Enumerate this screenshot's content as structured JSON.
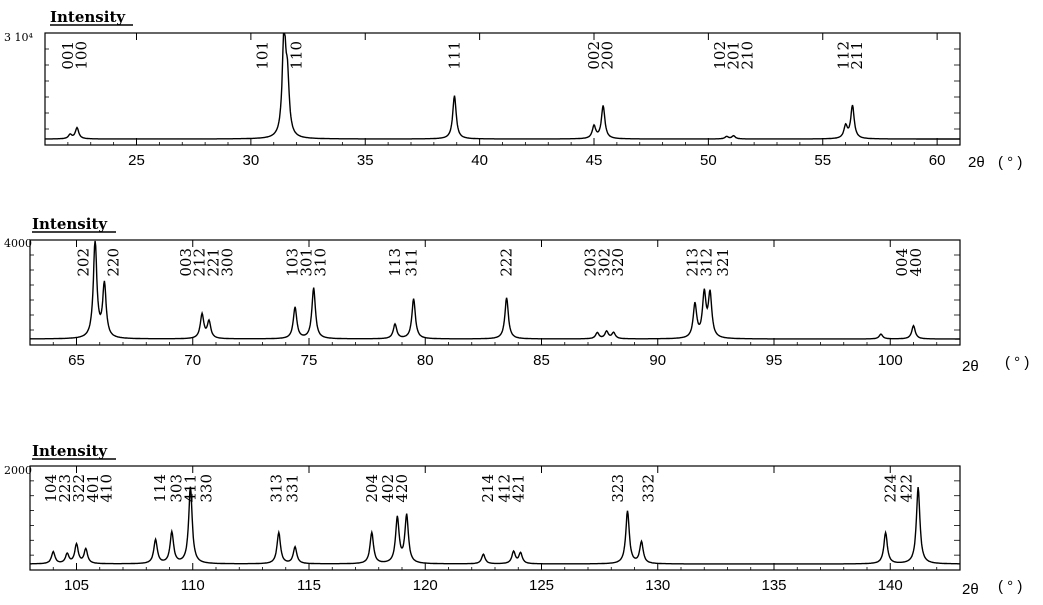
{
  "chart_data": [
    {
      "type": "line",
      "ylabel": "Intensity",
      "ylabel_underline": true,
      "y_max_label": "3 10⁴",
      "y_max": 30000,
      "xlabel": "2θ",
      "xunit": "( ° )",
      "xlim": [
        21,
        61
      ],
      "xticks": [
        25,
        30,
        35,
        40,
        45,
        50,
        55,
        60
      ],
      "xtick_labels": [
        "25",
        "30",
        "35",
        "40",
        "45",
        "50",
        "55",
        "60"
      ],
      "grid": false,
      "peaks": [
        {
          "x": 22.1,
          "y": 1200
        },
        {
          "x": 22.4,
          "y": 3200
        },
        {
          "x": 31.45,
          "y": 30000
        },
        {
          "x": 31.6,
          "y": 15000
        },
        {
          "x": 38.9,
          "y": 12500
        },
        {
          "x": 45.0,
          "y": 3600
        },
        {
          "x": 45.4,
          "y": 9500
        },
        {
          "x": 50.8,
          "y": 700
        },
        {
          "x": 51.1,
          "y": 900
        },
        {
          "x": 56.0,
          "y": 3600
        },
        {
          "x": 56.3,
          "y": 9500
        }
      ],
      "annotations": [
        {
          "label": "001",
          "x": 22.0
        },
        {
          "label": "100",
          "x": 22.6
        },
        {
          "label": "101",
          "x": 30.5
        },
        {
          "label": "110",
          "x": 32.0
        },
        {
          "label": "111",
          "x": 38.9
        },
        {
          "label": "002",
          "x": 45.0
        },
        {
          "label": "200",
          "x": 45.6
        },
        {
          "label": "102",
          "x": 50.5
        },
        {
          "label": "201",
          "x": 51.1
        },
        {
          "label": "210",
          "x": 51.7
        },
        {
          "label": "112",
          "x": 55.9
        },
        {
          "label": "211",
          "x": 56.5
        }
      ]
    },
    {
      "type": "line",
      "ylabel": "Intensity",
      "ylabel_underline": true,
      "y_max_label": "4000",
      "y_max": 4000,
      "xlabel": "2θ",
      "xunit": "( ° )",
      "xlim": [
        63,
        103
      ],
      "xticks": [
        65,
        70,
        75,
        80,
        85,
        90,
        95,
        100
      ],
      "xtick_labels": [
        "65",
        "70",
        "75",
        "80",
        "85",
        "90",
        "95",
        "100"
      ],
      "grid": false,
      "peaks": [
        {
          "x": 65.8,
          "y": 4000
        },
        {
          "x": 66.2,
          "y": 2200
        },
        {
          "x": 70.4,
          "y": 1000
        },
        {
          "x": 70.7,
          "y": 700
        },
        {
          "x": 74.4,
          "y": 1300
        },
        {
          "x": 75.2,
          "y": 2100
        },
        {
          "x": 78.7,
          "y": 600
        },
        {
          "x": 79.5,
          "y": 1650
        },
        {
          "x": 83.5,
          "y": 1700
        },
        {
          "x": 87.4,
          "y": 250
        },
        {
          "x": 87.8,
          "y": 300
        },
        {
          "x": 88.1,
          "y": 250
        },
        {
          "x": 91.6,
          "y": 1400
        },
        {
          "x": 92.0,
          "y": 1800
        },
        {
          "x": 92.25,
          "y": 1800
        },
        {
          "x": 99.6,
          "y": 200
        },
        {
          "x": 101.0,
          "y": 550
        }
      ],
      "annotations": [
        {
          "label": "202",
          "x": 65.3
        },
        {
          "label": "220",
          "x": 66.6
        },
        {
          "label": "003",
          "x": 69.7
        },
        {
          "label": "212",
          "x": 70.3
        },
        {
          "label": "221",
          "x": 70.9
        },
        {
          "label": "300",
          "x": 71.5
        },
        {
          "label": "103",
          "x": 74.3
        },
        {
          "label": "301",
          "x": 74.9
        },
        {
          "label": "310",
          "x": 75.5
        },
        {
          "label": "113",
          "x": 78.7
        },
        {
          "label": "311",
          "x": 79.4
        },
        {
          "label": "222",
          "x": 83.5
        },
        {
          "label": "203",
          "x": 87.1
        },
        {
          "label": "302",
          "x": 87.7
        },
        {
          "label": "320",
          "x": 88.3
        },
        {
          "label": "213",
          "x": 91.5
        },
        {
          "label": "312",
          "x": 92.1
        },
        {
          "label": "321",
          "x": 92.8
        },
        {
          "label": "004",
          "x": 100.5
        },
        {
          "label": "400",
          "x": 101.1
        }
      ]
    },
    {
      "type": "line",
      "ylabel": "Intensity",
      "ylabel_underline": true,
      "y_max_label": "2000",
      "y_max": 2000,
      "xlabel": "2θ",
      "xunit": "( ° )",
      "xlim": [
        103,
        143
      ],
      "xticks": [
        105,
        110,
        115,
        120,
        125,
        130,
        135,
        140
      ],
      "xtick_labels": [
        "105",
        "110",
        "115",
        "120",
        "125",
        "130",
        "135",
        "140"
      ],
      "grid": false,
      "peaks": [
        {
          "x": 104.0,
          "y": 250
        },
        {
          "x": 104.6,
          "y": 200
        },
        {
          "x": 105.0,
          "y": 400
        },
        {
          "x": 105.4,
          "y": 300
        },
        {
          "x": 108.4,
          "y": 500
        },
        {
          "x": 109.1,
          "y": 650
        },
        {
          "x": 109.9,
          "y": 1600
        },
        {
          "x": 113.7,
          "y": 650
        },
        {
          "x": 114.4,
          "y": 350
        },
        {
          "x": 117.7,
          "y": 650
        },
        {
          "x": 118.8,
          "y": 950
        },
        {
          "x": 119.2,
          "y": 1000
        },
        {
          "x": 122.5,
          "y": 200
        },
        {
          "x": 123.8,
          "y": 250
        },
        {
          "x": 124.1,
          "y": 220
        },
        {
          "x": 128.7,
          "y": 1100
        },
        {
          "x": 129.3,
          "y": 450
        },
        {
          "x": 139.8,
          "y": 650
        },
        {
          "x": 141.2,
          "y": 1600
        }
      ],
      "annotations": [
        {
          "label": "104",
          "x": 103.9
        },
        {
          "label": "223",
          "x": 104.5
        },
        {
          "label": "322",
          "x": 105.1
        },
        {
          "label": "401",
          "x": 105.7
        },
        {
          "label": "410",
          "x": 106.3
        },
        {
          "label": "114",
          "x": 108.6
        },
        {
          "label": "303",
          "x": 109.3
        },
        {
          "label": "411",
          "x": 109.9
        },
        {
          "label": "330",
          "x": 110.6
        },
        {
          "label": "313",
          "x": 113.6
        },
        {
          "label": "331",
          "x": 114.3
        },
        {
          "label": "204",
          "x": 117.7
        },
        {
          "label": "402",
          "x": 118.4
        },
        {
          "label": "420",
          "x": 119.0
        },
        {
          "label": "214",
          "x": 122.7
        },
        {
          "label": "412",
          "x": 123.4
        },
        {
          "label": "421",
          "x": 124.0
        },
        {
          "label": "323",
          "x": 128.3
        },
        {
          "label": "332",
          "x": 129.6
        },
        {
          "label": "224",
          "x": 140.0
        },
        {
          "label": "422",
          "x": 140.7
        }
      ]
    }
  ]
}
